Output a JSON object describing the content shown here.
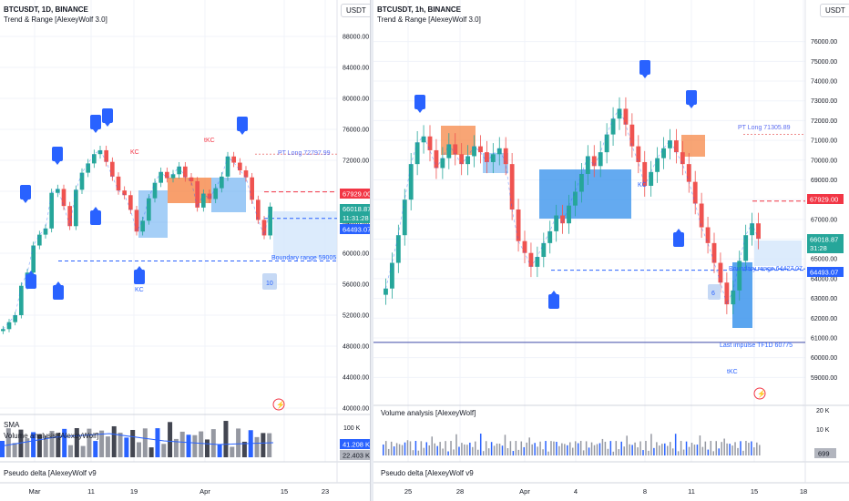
{
  "left": {
    "symbol": "BTCUSDT, 1D, BINANCE",
    "indicator": "Trend & Range [AlexeyWolf 3.0]",
    "currency": "USDT",
    "sub_panel": "SMA",
    "sub_panel2": "Volume analysis [AlexeyWolf]",
    "delta_panel": "Pseudo delta [AlexeyWolf v9",
    "annotations": {
      "kc1": "KC",
      "tkc1": "tKC",
      "kc2": "KC",
      "pt_long": "PT Long 72797.99",
      "boundary": "Boundary range 59005",
      "num10": "10"
    },
    "price_badges": {
      "p1": "67929.00",
      "p2": "66018.87",
      "p2_time": "11:31:28",
      "p3": "64493.07"
    },
    "vol_badges": {
      "v1": "41.208 K",
      "v2": "22.403 K"
    },
    "vol_axis": "100 K"
  },
  "right": {
    "symbol": "BTCUSDT, 1h, BINANCE",
    "indicator": "Trend & Range [AlexeyWolf 3.0]",
    "currency": "USDT",
    "sub_panel": "Volume analysis [AlexeyWolf]",
    "delta_panel": "Pseudo delta [AlexeyWolf v9",
    "annotations": {
      "kc": "KC",
      "pt_long": "PT Long 71305.89",
      "boundary": "Boundary range 64427.07",
      "last_impulse": "Last impulse TF1D 60775",
      "tkc": "tKC",
      "num6": "6"
    },
    "price_badges": {
      "p1": "67929.00",
      "p2": "66018.87",
      "p2_time": "31:28",
      "p3": "64493.07"
    },
    "vol_badges": {
      "v1": "699"
    },
    "vol_axis": [
      "20 K",
      "10 K"
    ]
  },
  "chart_data": [
    {
      "type": "line",
      "title": "BTCUSDT, 1D, BINANCE",
      "ylim": [
        40000,
        88000
      ],
      "yticks": [
        40000,
        44000,
        48000,
        52000,
        56000,
        60000,
        64000,
        68000,
        72000,
        76000,
        80000,
        84000,
        88000
      ],
      "ytick_labels": [
        "40000.00",
        "44000.00",
        "48000.00",
        "52000.00",
        "56000.00",
        "60000.00",
        "64000.00",
        "68000.00",
        "72000.00",
        "76000.00",
        "80000.00",
        "84000.00",
        "88000.00"
      ],
      "xtick_labels": [
        "Mar",
        "11",
        "19",
        "Apr",
        "15",
        "23"
      ],
      "series": [
        {
          "values": [
            50200,
            51100,
            52000,
            55800,
            57500,
            61000,
            62400,
            63200,
            67800,
            68300,
            66100,
            63500,
            68200,
            70400,
            71600,
            72800,
            73300,
            71800,
            69900,
            68100,
            67500,
            65600,
            62800,
            64200,
            67100,
            69100,
            70500,
            69700,
            70200,
            71200,
            69800,
            69300,
            65900,
            67700,
            67000,
            68400,
            69900,
            72500,
            71700,
            70700,
            69800,
            66900,
            64300,
            62300,
            66018
          ]
        }
      ],
      "lines": {
        "pt_long": 72797.99,
        "p1": 67929,
        "p3": 64493.07,
        "boundary": 59005
      }
    },
    {
      "type": "line",
      "title": "BTCUSDT, 1h, BINANCE",
      "ylim": [
        58000,
        77000
      ],
      "yticks": [
        59000,
        60000,
        61000,
        62000,
        63000,
        64000,
        65000,
        66000,
        67000,
        68000,
        69000,
        70000,
        71000,
        72000,
        73000,
        74000,
        75000,
        76000
      ],
      "ytick_labels": [
        "59000.00",
        "60000.00",
        "61000.00",
        "62000.00",
        "63000.00",
        "64000.00",
        "65000.00",
        "66000.00",
        "67000.00",
        "68000.00",
        "69000.00",
        "70000.00",
        "71000.00",
        "72000.00",
        "73000.00",
        "74000.00",
        "75000.00",
        "76000.00"
      ],
      "xtick_labels": [
        "25",
        "28",
        "Apr",
        "4",
        "8",
        "11",
        "15",
        "18"
      ],
      "series": [
        {
          "values": [
            63500,
            64800,
            66200,
            68000,
            69800,
            70900,
            71200,
            70500,
            69600,
            70100,
            70800,
            70300,
            69800,
            70200,
            70700,
            70400,
            69900,
            70300,
            70600,
            69800,
            67500,
            65900,
            65300,
            64600,
            65100,
            65800,
            66400,
            67200,
            66800,
            67700,
            68400,
            69300,
            70200,
            69700,
            70400,
            71300,
            72100,
            72600,
            71800,
            70700,
            69900,
            68700,
            69400,
            70100,
            70600,
            71000,
            70400,
            69800,
            68900,
            67800,
            66600,
            65800,
            64800,
            63800,
            62700,
            63400,
            64900,
            66200,
            66800,
            66018
          ]
        }
      ],
      "lines": {
        "pt_long": 71305.89,
        "p1": 67929,
        "p3": 64493.07,
        "boundary": 64427.07,
        "last_impulse": 60775
      }
    }
  ]
}
